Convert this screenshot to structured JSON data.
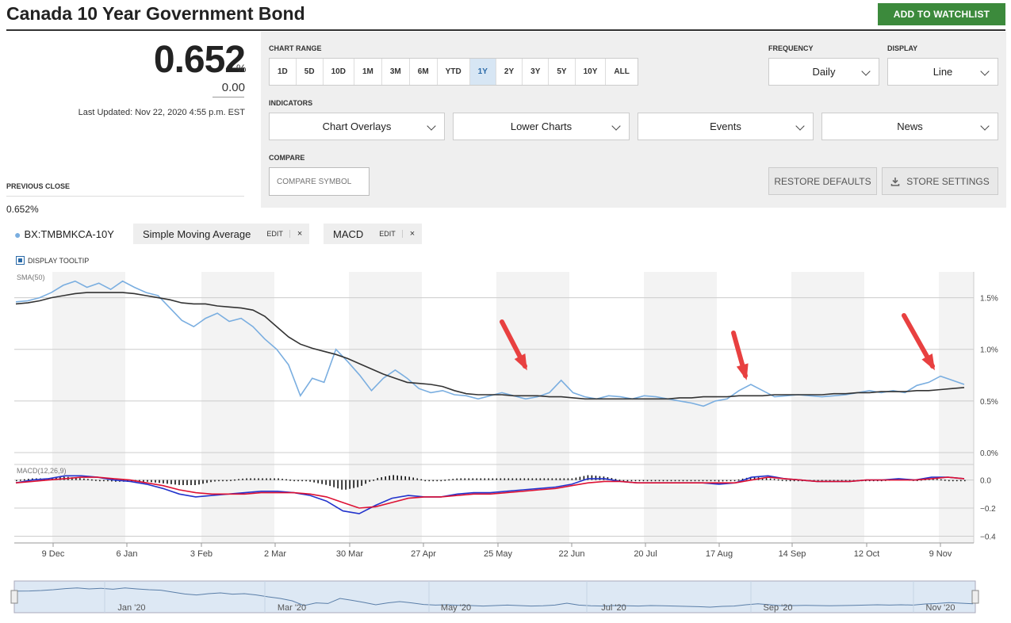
{
  "header": {
    "title": "Canada 10 Year Government Bond",
    "watchlist_label": "ADD TO WATCHLIST"
  },
  "quote": {
    "price": "0.652",
    "price_unit": "%",
    "change": "0.00",
    "last_updated": "Last Updated: Nov 22, 2020 4:55 p.m. EST",
    "previous_close_label": "PREVIOUS CLOSE",
    "previous_close_value": "0.652%"
  },
  "controls": {
    "chart_range_label": "CHART RANGE",
    "ranges": [
      "1D",
      "5D",
      "10D",
      "1M",
      "3M",
      "6M",
      "YTD",
      "1Y",
      "2Y",
      "3Y",
      "5Y",
      "10Y",
      "ALL"
    ],
    "active_range": "1Y",
    "frequency_label": "FREQUENCY",
    "frequency_value": "Daily",
    "display_label": "DISPLAY",
    "display_value": "Line",
    "indicators_label": "INDICATORS",
    "indicators": [
      "Chart Overlays",
      "Lower Charts",
      "Events",
      "News"
    ],
    "compare_label": "COMPARE",
    "compare_placeholder": "COMPARE SYMBOL",
    "restore_label": "RESTORE DEFAULTS",
    "store_label": "STORE SETTINGS"
  },
  "legend": {
    "symbol": "BX:TMBMKCA-10Y",
    "overlay": "Simple Moving Average",
    "lower": "MACD",
    "edit_label": "EDIT",
    "remove_label": "×",
    "tooltip_label": "DISPLAY TOOLTIP"
  },
  "colors": {
    "price_line": "#7aaee0",
    "sma_line": "#333333",
    "macd_line": "#2233cc",
    "signal_line": "#dd1133",
    "accent": "#3c8a3c",
    "arrow": "#e84040"
  },
  "chart_data": [
    {
      "type": "line",
      "title": "SMA(50)",
      "x_ticks": [
        "9 Dec",
        "6 Jan",
        "3 Feb",
        "2 Mar",
        "30 Mar",
        "27 Apr",
        "25 May",
        "22 Jun",
        "20 Jul",
        "17 Aug",
        "14 Sep",
        "12 Oct",
        "9 Nov"
      ],
      "y_ticks": [
        "0.0%",
        "0.5%",
        "1.0%",
        "1.5%"
      ],
      "ylim": [
        0,
        1.75
      ],
      "grid": true,
      "series": [
        {
          "name": "BX:TMBMKCA-10Y",
          "values": [
            1.46,
            1.47,
            1.5,
            1.55,
            1.62,
            1.66,
            1.6,
            1.64,
            1.58,
            1.66,
            1.6,
            1.55,
            1.52,
            1.4,
            1.28,
            1.22,
            1.3,
            1.35,
            1.27,
            1.3,
            1.22,
            1.1,
            1.0,
            0.85,
            0.55,
            0.72,
            0.68,
            1.0,
            0.88,
            0.75,
            0.6,
            0.72,
            0.8,
            0.72,
            0.62,
            0.58,
            0.6,
            0.56,
            0.55,
            0.52,
            0.55,
            0.58,
            0.55,
            0.52,
            0.54,
            0.58,
            0.7,
            0.58,
            0.54,
            0.52,
            0.55,
            0.54,
            0.52,
            0.55,
            0.54,
            0.52,
            0.5,
            0.48,
            0.45,
            0.5,
            0.52,
            0.6,
            0.66,
            0.6,
            0.54,
            0.55,
            0.56,
            0.55,
            0.54,
            0.55,
            0.56,
            0.58,
            0.6,
            0.58,
            0.6,
            0.58,
            0.65,
            0.68,
            0.74,
            0.7,
            0.66
          ]
        },
        {
          "name": "SMA(50)",
          "values": [
            1.44,
            1.45,
            1.47,
            1.5,
            1.52,
            1.54,
            1.55,
            1.55,
            1.55,
            1.55,
            1.54,
            1.52,
            1.5,
            1.48,
            1.45,
            1.44,
            1.44,
            1.42,
            1.41,
            1.4,
            1.38,
            1.32,
            1.22,
            1.12,
            1.05,
            1.01,
            0.98,
            0.95,
            0.91,
            0.86,
            0.81,
            0.76,
            0.72,
            0.68,
            0.67,
            0.66,
            0.64,
            0.6,
            0.57,
            0.56,
            0.56,
            0.56,
            0.55,
            0.55,
            0.55,
            0.54,
            0.54,
            0.53,
            0.52,
            0.52,
            0.52,
            0.52,
            0.52,
            0.52,
            0.52,
            0.52,
            0.53,
            0.53,
            0.54,
            0.54,
            0.54,
            0.55,
            0.55,
            0.55,
            0.56,
            0.56,
            0.56,
            0.56,
            0.56,
            0.57,
            0.57,
            0.58,
            0.58,
            0.59,
            0.59,
            0.59,
            0.6,
            0.6,
            0.61,
            0.62,
            0.63
          ]
        }
      ]
    },
    {
      "type": "line",
      "title": "MACD(12,26,9)",
      "y_ticks": [
        "0.0",
        "−0.2",
        "−0.4"
      ],
      "ylim": [
        -0.42,
        0.06
      ],
      "grid": true,
      "series": [
        {
          "name": "MACD",
          "values": [
            -0.02,
            0.0,
            0.01,
            0.03,
            0.03,
            0.02,
            0.0,
            -0.01,
            -0.03,
            -0.06,
            -0.1,
            -0.12,
            -0.11,
            -0.1,
            -0.09,
            -0.08,
            -0.08,
            -0.09,
            -0.11,
            -0.15,
            -0.22,
            -0.24,
            -0.18,
            -0.13,
            -0.11,
            -0.12,
            -0.12,
            -0.1,
            -0.09,
            -0.09,
            -0.08,
            -0.07,
            -0.06,
            -0.05,
            -0.03,
            0.01,
            0.01,
            -0.01,
            -0.02,
            -0.02,
            -0.02,
            -0.02,
            -0.02,
            -0.03,
            -0.02,
            0.02,
            0.03,
            0.01,
            0.0,
            -0.01,
            -0.01,
            -0.01,
            0.0,
            0.0,
            0.01,
            0.0,
            0.02,
            0.02,
            0.01
          ]
        },
        {
          "name": "Signal",
          "values": [
            -0.02,
            -0.01,
            0.0,
            0.01,
            0.02,
            0.02,
            0.01,
            0.0,
            -0.02,
            -0.04,
            -0.07,
            -0.09,
            -0.1,
            -0.1,
            -0.1,
            -0.09,
            -0.09,
            -0.09,
            -0.1,
            -0.12,
            -0.16,
            -0.2,
            -0.19,
            -0.16,
            -0.13,
            -0.12,
            -0.12,
            -0.11,
            -0.1,
            -0.1,
            -0.09,
            -0.08,
            -0.07,
            -0.06,
            -0.04,
            -0.02,
            -0.01,
            -0.01,
            -0.02,
            -0.02,
            -0.02,
            -0.02,
            -0.02,
            -0.02,
            -0.02,
            0.0,
            0.02,
            0.01,
            0.0,
            -0.01,
            -0.01,
            -0.01,
            0.0,
            0.0,
            0.0,
            0.0,
            0.01,
            0.02,
            0.01
          ]
        }
      ]
    }
  ],
  "navigator": {
    "labels": [
      "Jan '20",
      "Mar '20",
      "May '20",
      "Jul '20",
      "Sep '20",
      "Nov '20"
    ]
  }
}
